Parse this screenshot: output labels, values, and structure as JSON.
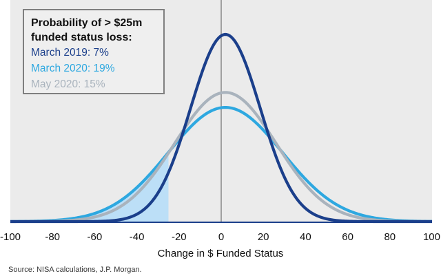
{
  "chart_data": {
    "type": "line",
    "subtype": "normal distribution density curves",
    "title": "",
    "xlabel": "Change in $ Funded Status",
    "ylabel": "",
    "xlim": [
      -100,
      100
    ],
    "x_ticks": [
      -100,
      -80,
      -60,
      -40,
      -20,
      0,
      20,
      40,
      60,
      80,
      100
    ],
    "y_axis": "hidden",
    "grid": false,
    "vertical_reference_line_at": 0,
    "shaded_region": {
      "series": "March 2020",
      "x_from": -100,
      "x_to": -25,
      "color": "#bcdff7"
    },
    "series": [
      {
        "name": "March 2019",
        "color": "#1b3f8b",
        "distribution": {
          "mean": 2,
          "sd": 16.5
        },
        "relative_peak": 1.0
      },
      {
        "name": "March 2020",
        "color": "#2ea8e0",
        "distribution": {
          "mean": 2,
          "sd": 27
        },
        "relative_peak": 0.61
      },
      {
        "name": "May 2020",
        "color": "#a9b3bd",
        "distribution": {
          "mean": 2,
          "sd": 24
        },
        "relative_peak": 0.69
      }
    ],
    "legend": {
      "placement": "top-left",
      "title": "Probability of > $25m funded status loss:",
      "entries": [
        {
          "text": "March 2019: 7%",
          "color": "#1b3f8b"
        },
        {
          "text": "March 2020: 19%",
          "color": "#2ea8e0"
        },
        {
          "text": "May 2020: 15%",
          "color": "#a9b3bd"
        }
      ]
    },
    "plot_background": "#ebebeb"
  },
  "source": "Source: NISA calculations, J.P. Morgan."
}
